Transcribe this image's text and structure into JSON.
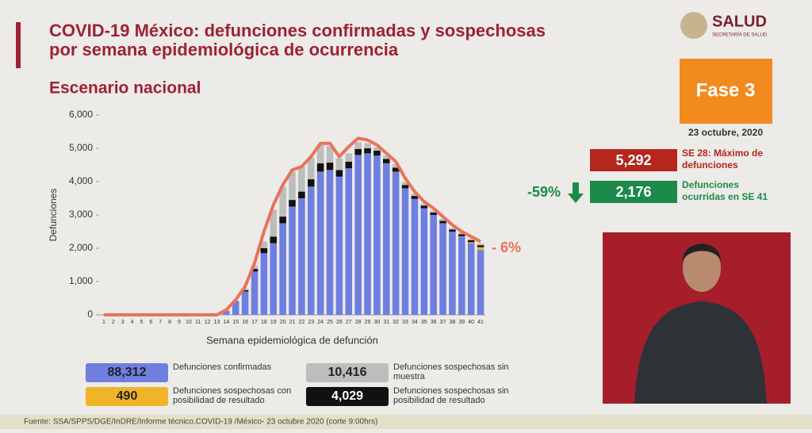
{
  "header": {
    "title_line1": "COVID-19 México: defunciones confirmadas y sospechosas",
    "title_line2": "por semana epidemiológica de ocurrencia",
    "subtitle": "Escenario nacional",
    "logo": "SALUD",
    "logo_sub": "SECRETARÍA DE SALUD"
  },
  "side": {
    "phase": "Fase 3",
    "date": "23 octubre, 2020",
    "max_value": "5,292",
    "max_label": "SE 28: Máximo de defunciones",
    "change": "-59%",
    "last_value": "2,176",
    "last_label": "Defunciones ocurridas en SE 41",
    "end_change": "- 6%"
  },
  "footer": {
    "source": "Fuente: SSA/SPPS/DGE/InDRE/Informe técnico.COVID-19 /México- 23 octubre 2020 (corte 9:00hrs)"
  },
  "chart_data": {
    "type": "stacked_bar",
    "y_label": "Defunciones",
    "x_label": "Semana epidemiológica de defunción",
    "categories": [
      "1",
      "2",
      "3",
      "4",
      "5",
      "6",
      "7",
      "8",
      "9",
      "10",
      "11",
      "12",
      "13",
      "14",
      "15",
      "16",
      "17",
      "18",
      "19",
      "20",
      "21",
      "22",
      "23",
      "24",
      "25",
      "26",
      "27",
      "28",
      "29",
      "30",
      "31",
      "32",
      "33",
      "34",
      "35",
      "36",
      "37",
      "38",
      "39",
      "40",
      "41"
    ],
    "ylim": [
      0,
      6000
    ],
    "yticks": [
      0,
      {
        "value": 1000,
        "label": "1,000"
      },
      {
        "value": 2000,
        "label": "2,000"
      },
      {
        "value": 3000,
        "label": "3,000"
      },
      {
        "value": 4000,
        "label": "4,000"
      },
      {
        "value": 5000,
        "label": "5,000"
      },
      {
        "value": 6000,
        "label": "6,000"
      }
    ],
    "series": [
      {
        "name": "Defunciones confirmadas",
        "color": "#6f7fe0",
        "total": {
          "value": 88312,
          "label": "88,312"
        },
        "values": [
          0,
          0,
          0,
          0,
          0,
          0,
          0,
          0,
          0,
          0,
          0,
          0,
          0,
          120,
          400,
          700,
          1300,
          1850,
          2150,
          2750,
          3250,
          3500,
          3850,
          4300,
          4350,
          4150,
          4400,
          4800,
          4850,
          4780,
          4550,
          4300,
          3800,
          3480,
          3200,
          3000,
          2750,
          2500,
          2350,
          2150,
          1950
        ]
      },
      {
        "name": "Defunciones sospechosas con posibilidad de resultado",
        "color": "#f0b429",
        "total": {
          "value": 490,
          "label": "490"
        },
        "values": [
          0,
          0,
          0,
          0,
          0,
          0,
          0,
          0,
          0,
          0,
          0,
          0,
          0,
          0,
          0,
          0,
          0,
          0,
          0,
          0,
          0,
          0,
          0,
          0,
          0,
          0,
          0,
          0,
          0,
          0,
          0,
          0,
          0,
          0,
          0,
          0,
          0,
          0,
          10,
          30,
          80
        ]
      },
      {
        "name": "Defunciones sospechosas sin posibilidad de resultado",
        "color": "#111111",
        "total": {
          "value": 4029,
          "label": "4,029"
        },
        "values": [
          0,
          0,
          0,
          0,
          0,
          0,
          0,
          0,
          0,
          0,
          0,
          0,
          0,
          0,
          10,
          40,
          80,
          150,
          200,
          200,
          200,
          200,
          220,
          250,
          220,
          200,
          200,
          180,
          150,
          150,
          130,
          120,
          100,
          90,
          80,
          70,
          70,
          60,
          60,
          60,
          60
        ]
      },
      {
        "name": "Defunciones sospechosas sin muestra",
        "color": "#bdbdbd",
        "total": {
          "value": 10416,
          "label": "10,416"
        },
        "values": [
          0,
          0,
          0,
          0,
          0,
          0,
          0,
          0,
          0,
          0,
          0,
          0,
          0,
          0,
          20,
          50,
          100,
          200,
          800,
          900,
          850,
          750,
          650,
          550,
          500,
          350,
          250,
          200,
          150,
          100,
          100,
          100,
          80,
          70,
          60,
          60,
          60,
          50,
          50,
          50,
          50
        ]
      }
    ],
    "line": {
      "color": "#e8735a",
      "values": [
        0,
        0,
        0,
        0,
        0,
        0,
        0,
        0,
        0,
        0,
        0,
        0,
        0,
        150,
        450,
        850,
        1550,
        2500,
        3300,
        3900,
        4350,
        4450,
        4750,
        5150,
        5150,
        4750,
        5050,
        5300,
        5250,
        5100,
        4850,
        4600,
        4100,
        3700,
        3400,
        3200,
        2950,
        2700,
        2500,
        2350,
        2200
      ]
    }
  }
}
